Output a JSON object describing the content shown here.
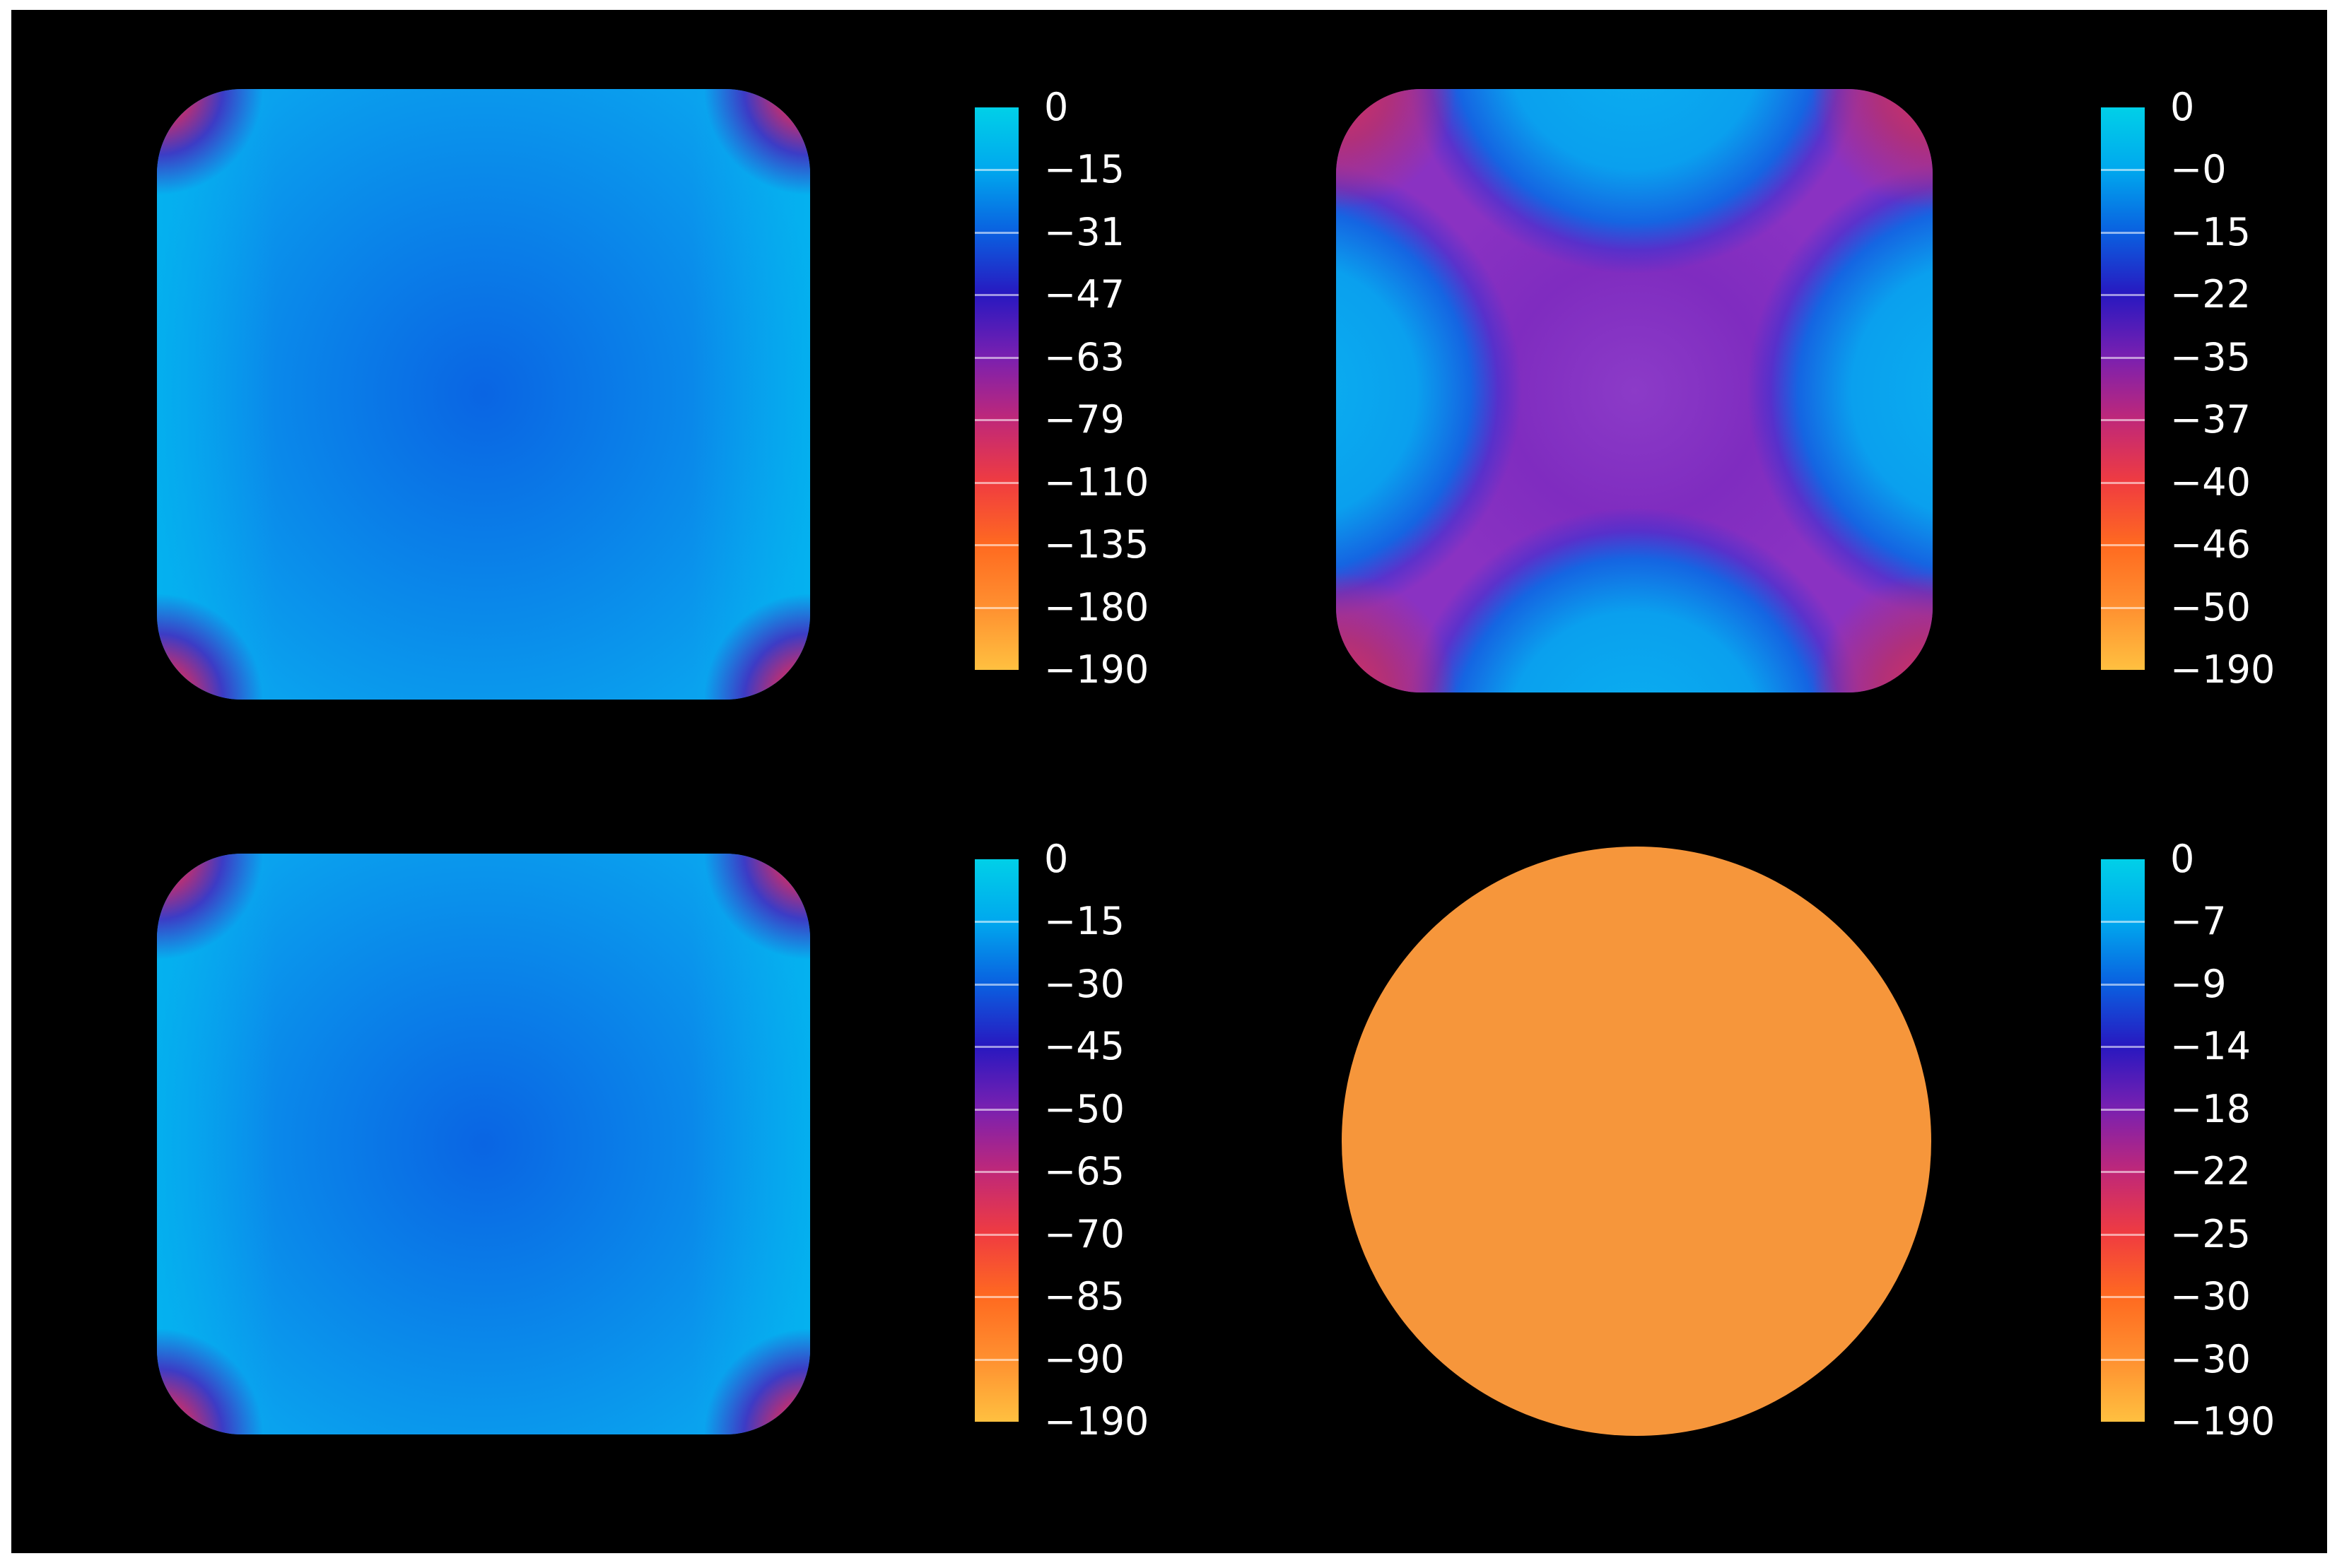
{
  "chart_data": [
    {
      "type": "heatmap",
      "shape": "rounded-square",
      "pattern": "corner-lobes",
      "colorbar_ticks": [
        "0",
        "−15",
        "−31",
        "−47",
        "−63",
        "−79",
        "−110",
        "−135",
        "−180",
        "−190"
      ],
      "background": "#000000"
    },
    {
      "type": "heatmap",
      "shape": "rounded-square",
      "pattern": "saddle-cross",
      "colorbar_ticks": [
        "0",
        "−0",
        "−15",
        "−22",
        "−35",
        "−37",
        "−40",
        "−46",
        "−50",
        "−190"
      ],
      "background": "#000000"
    },
    {
      "type": "heatmap",
      "shape": "rounded-square",
      "pattern": "corner-lobes",
      "colorbar_ticks": [
        "0",
        "−15",
        "−30",
        "−45",
        "−50",
        "−65",
        "−70",
        "−85",
        "−90",
        "−190"
      ],
      "background": "#000000"
    },
    {
      "type": "heatmap",
      "shape": "disk",
      "pattern": "uniform",
      "uniform_color": "#f6963b",
      "colorbar_ticks": [
        "0",
        "−7",
        "−9",
        "−14",
        "−18",
        "−22",
        "−25",
        "−30",
        "−30",
        "−190"
      ],
      "background": "#000000"
    }
  ],
  "colormap": [
    "#00d0e8",
    "#00a8ee",
    "#0a60e0",
    "#2818c0",
    "#7a20b0",
    "#c02878",
    "#f03c40",
    "#ff6a20",
    "#ff9030",
    "#ffc040"
  ]
}
